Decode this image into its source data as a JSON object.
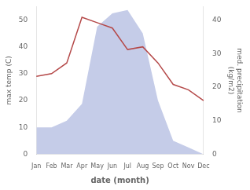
{
  "chart_data": {
    "type": "line",
    "xlabel": "date (month)",
    "ylabel": "max temp (C)",
    "y2label": "med. precipitation\n(kg/m2)",
    "categories": [
      "Jan",
      "Feb",
      "Mar",
      "Apr",
      "May",
      "Jun",
      "Jul",
      "Aug",
      "Sep",
      "Oct",
      "Nov",
      "Dec"
    ],
    "series": [
      {
        "type": "line",
        "color": "#b54a4a",
        "values": [
          29,
          30,
          34,
          51,
          49,
          47,
          39,
          40,
          34,
          26,
          24,
          20
        ]
      },
      {
        "type": "area",
        "color": "#c5cce8",
        "axis": "y2",
        "values": [
          8,
          8,
          10,
          15,
          38,
          42,
          43,
          36,
          16,
          4,
          2,
          0
        ]
      }
    ],
    "ylim": [
      0,
      55
    ],
    "yticks": [
      0,
      10,
      20,
      30,
      40,
      50
    ],
    "y2lim": [
      0,
      44
    ],
    "y2ticks": [
      0,
      10,
      20,
      30,
      40
    ],
    "grid": false
  }
}
